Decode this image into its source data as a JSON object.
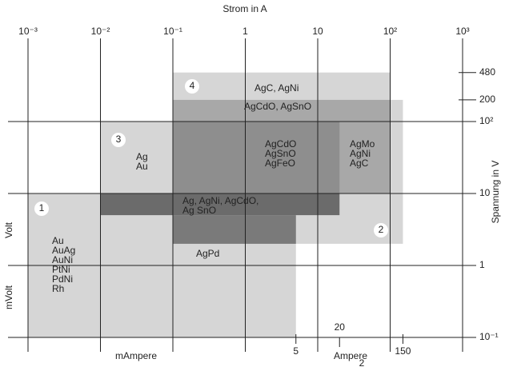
{
  "chart_data": {
    "type": "regions",
    "xlabel": "Strom in A",
    "ylabel": "Spannung in V",
    "xlog": true,
    "ylog": true,
    "xlim": [
      0.001,
      1000
    ],
    "ylim": [
      0.1,
      1000
    ],
    "xticks": [
      {
        "value": 0.001,
        "label": "10⁻³"
      },
      {
        "value": 0.01,
        "label": "10⁻²"
      },
      {
        "value": 0.1,
        "label": "10⁻¹"
      },
      1,
      10,
      {
        "value": 100,
        "label": "10²"
      },
      {
        "value": 1000,
        "label": "10³"
      }
    ],
    "yticks": [
      {
        "value": 0.1,
        "label": "10⁻¹"
      },
      1,
      10,
      {
        "value": 100,
        "label": "10²"
      }
    ],
    "yticks_minor": [
      200,
      480
    ],
    "bottom_ticks": [
      5,
      20,
      150
    ],
    "bottom_labels": [
      "mAmpere",
      "Ampere"
    ],
    "left_labels": [
      "Volt",
      "mVolt"
    ],
    "page_mark": "2",
    "regions": [
      {
        "x": [
          0.001,
          5
        ],
        "y": [
          0.1,
          10
        ],
        "color": "#d6d6d6"
      },
      {
        "x": [
          0.01,
          0.1
        ],
        "y": [
          10,
          100
        ],
        "color": "#d6d6d6"
      },
      {
        "x": [
          0.1,
          100
        ],
        "y": [
          10,
          480
        ],
        "color": "#d6d6d6"
      },
      {
        "x": [
          0.1,
          150
        ],
        "y": [
          2,
          200
        ],
        "color": "#d6d6d6"
      },
      {
        "x": [
          0.1,
          100
        ],
        "y": [
          10,
          200
        ],
        "color": "#a8a8a8"
      },
      {
        "x": [
          0.1,
          20
        ],
        "y": [
          10,
          100
        ],
        "color": "#8e8e8e"
      },
      {
        "x": [
          0.1,
          5
        ],
        "y": [
          2,
          5
        ],
        "color": "#7a7a7a"
      },
      {
        "x": [
          0.01,
          20
        ],
        "y": [
          5,
          10
        ],
        "color": "#6b6b6b"
      }
    ],
    "labels": [
      {
        "lines": [
          "1"
        ]
      },
      {
        "lines": [
          "Au",
          "AuAg",
          "AuNi",
          "PtNi",
          "PdNi",
          "Rh"
        ]
      },
      {
        "lines": [
          "3"
        ]
      },
      {
        "lines": [
          "Ag",
          "Au"
        ]
      },
      {
        "lines": [
          "4"
        ]
      },
      {
        "lines": [
          "AgC, AgNi"
        ]
      },
      {
        "lines": [
          "AgCdO, AgSnO"
        ]
      },
      {
        "lines": [
          "AgCdO",
          "AgSnO",
          "AgFeO"
        ]
      },
      {
        "lines": [
          "AgMo",
          "AgNi",
          "AgC"
        ]
      },
      {
        "lines": [
          "Ag, AgNi, AgCdO,",
          "Ag SnO"
        ]
      },
      {
        "lines": [
          "2"
        ]
      },
      {
        "lines": [
          "AgPd"
        ]
      }
    ]
  }
}
